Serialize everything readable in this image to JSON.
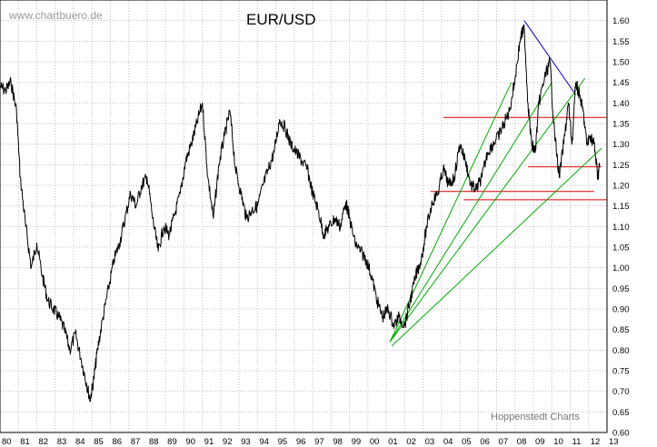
{
  "watermark": "www.chartbuero.de",
  "footer": "Hoppenstedt Charts",
  "chart_data": {
    "type": "line",
    "title": "EUR/USD",
    "xlabel": "",
    "ylabel": "",
    "xlim": [
      1980,
      2013
    ],
    "ylim": [
      0.6,
      1.65
    ],
    "x_tick_labels": [
      "80",
      "81",
      "82",
      "83",
      "84",
      "85",
      "86",
      "87",
      "88",
      "89",
      "90",
      "91",
      "92",
      "93",
      "94",
      "95",
      "96",
      "97",
      "98",
      "99",
      "00",
      "01",
      "02",
      "03",
      "04",
      "05",
      "06",
      "07",
      "08",
      "09",
      "10",
      "11",
      "12",
      "13"
    ],
    "y_ticks": [
      0.6,
      0.65,
      0.7,
      0.75,
      0.8,
      0.85,
      0.9,
      0.95,
      1.0,
      1.05,
      1.1,
      1.15,
      1.2,
      1.25,
      1.3,
      1.35,
      1.4,
      1.45,
      1.5,
      1.55,
      1.6
    ],
    "y_tick_labels": [
      "0.60",
      "0.65",
      "0.70",
      "0.75",
      "0.80",
      "0.85",
      "0.90",
      "0.95",
      "1.00",
      "1.05",
      "1.10",
      "1.15",
      "1.20",
      "1.25",
      "1.30",
      "1.35",
      "1.40",
      "1.45",
      "1.50",
      "1.55",
      "1.60"
    ],
    "grid": true,
    "series": [
      {
        "color": "#000000",
        "x": [
          1980.0,
          1980.3,
          1980.6,
          1980.9,
          1981.1,
          1981.4,
          1981.7,
          1982.0,
          1982.3,
          1982.6,
          1982.9,
          1983.2,
          1983.5,
          1983.8,
          1984.1,
          1984.4,
          1984.7,
          1984.9,
          1985.1,
          1985.3,
          1985.6,
          1985.9,
          1986.2,
          1986.5,
          1986.8,
          1987.1,
          1987.4,
          1987.7,
          1988.0,
          1988.3,
          1988.6,
          1988.9,
          1989.2,
          1989.5,
          1989.8,
          1990.1,
          1990.4,
          1990.7,
          1991.0,
          1991.3,
          1991.6,
          1991.9,
          1992.2,
          1992.5,
          1992.8,
          1993.1,
          1993.4,
          1993.7,
          1994.0,
          1994.3,
          1994.6,
          1994.9,
          1995.2,
          1995.5,
          1995.8,
          1996.1,
          1996.4,
          1996.7,
          1997.0,
          1997.3,
          1997.6,
          1997.9,
          1998.2,
          1998.5,
          1998.8,
          1999.0,
          1999.3,
          1999.6,
          1999.9,
          2000.2,
          2000.5,
          2000.8,
          2001.1,
          2001.4,
          2001.7,
          2002.0,
          2002.3,
          2002.6,
          2002.9,
          2003.2,
          2003.5,
          2003.8,
          2004.1,
          2004.4,
          2004.7,
          2005.0,
          2005.3,
          2005.6,
          2005.9,
          2006.2,
          2006.5,
          2006.8,
          2007.1,
          2007.4,
          2007.7,
          2008.0,
          2008.3,
          2008.5,
          2008.7,
          2008.9,
          2009.1,
          2009.3,
          2009.6,
          2009.9,
          2010.1,
          2010.4,
          2010.7,
          2010.9,
          2011.1,
          2011.3,
          2011.5,
          2011.7,
          2011.9,
          2012.1,
          2012.3,
          2012.5,
          2012.6
        ],
        "values": [
          1.44,
          1.43,
          1.45,
          1.38,
          1.22,
          1.1,
          1.0,
          1.06,
          0.98,
          0.92,
          0.9,
          0.88,
          0.85,
          0.8,
          0.84,
          0.78,
          0.72,
          0.68,
          0.73,
          0.8,
          0.88,
          0.95,
          1.02,
          1.06,
          1.12,
          1.18,
          1.15,
          1.2,
          1.22,
          1.12,
          1.04,
          1.1,
          1.08,
          1.13,
          1.18,
          1.26,
          1.3,
          1.35,
          1.4,
          1.22,
          1.12,
          1.25,
          1.32,
          1.38,
          1.24,
          1.18,
          1.12,
          1.14,
          1.15,
          1.2,
          1.24,
          1.28,
          1.36,
          1.34,
          1.3,
          1.28,
          1.26,
          1.24,
          1.18,
          1.14,
          1.08,
          1.1,
          1.12,
          1.1,
          1.16,
          1.12,
          1.06,
          1.04,
          1.02,
          0.98,
          0.92,
          0.88,
          0.9,
          0.86,
          0.88,
          0.86,
          0.92,
          0.98,
          1.02,
          1.1,
          1.16,
          1.18,
          1.24,
          1.2,
          1.22,
          1.3,
          1.26,
          1.2,
          1.19,
          1.22,
          1.28,
          1.3,
          1.32,
          1.35,
          1.38,
          1.46,
          1.56,
          1.58,
          1.4,
          1.3,
          1.28,
          1.4,
          1.46,
          1.5,
          1.35,
          1.22,
          1.32,
          1.4,
          1.3,
          1.45,
          1.42,
          1.38,
          1.3,
          1.32,
          1.3,
          1.22,
          1.25
        ]
      }
    ],
    "overlays": [
      {
        "type": "trendline",
        "color": "#0000cc",
        "x": [
          2008.5,
          2011.3
        ],
        "y": [
          1.6,
          1.42
        ]
      },
      {
        "type": "horizontal",
        "color": "#dd0000",
        "x": [
          2004.1,
          2013.0
        ],
        "y": 1.365
      },
      {
        "type": "horizontal",
        "color": "#dd0000",
        "x": [
          2008.7,
          2012.7
        ],
        "y": 1.245
      },
      {
        "type": "horizontal",
        "color": "#dd0000",
        "x": [
          2003.4,
          2012.3
        ],
        "y": 1.185
      },
      {
        "type": "horizontal",
        "color": "#dd0000",
        "x": [
          2005.2,
          2013.0
        ],
        "y": 1.165
      },
      {
        "type": "trendline",
        "color": "#00aa00",
        "x": [
          2001.2,
          2007.8
        ],
        "y": 0.82,
        "y2": 1.45
      },
      {
        "type": "trendline",
        "color": "#00aa00",
        "x": [
          2001.2,
          2010.0
        ],
        "y": 0.82,
        "y2": 1.45
      },
      {
        "type": "trendline",
        "color": "#00aa00",
        "x": [
          2001.2,
          2011.8
        ],
        "y": 0.82,
        "y2": 1.46
      },
      {
        "type": "trendline",
        "color": "#00aa00",
        "x": [
          2001.3,
          2012.7
        ],
        "y": 0.81,
        "y2": 1.29
      }
    ]
  }
}
